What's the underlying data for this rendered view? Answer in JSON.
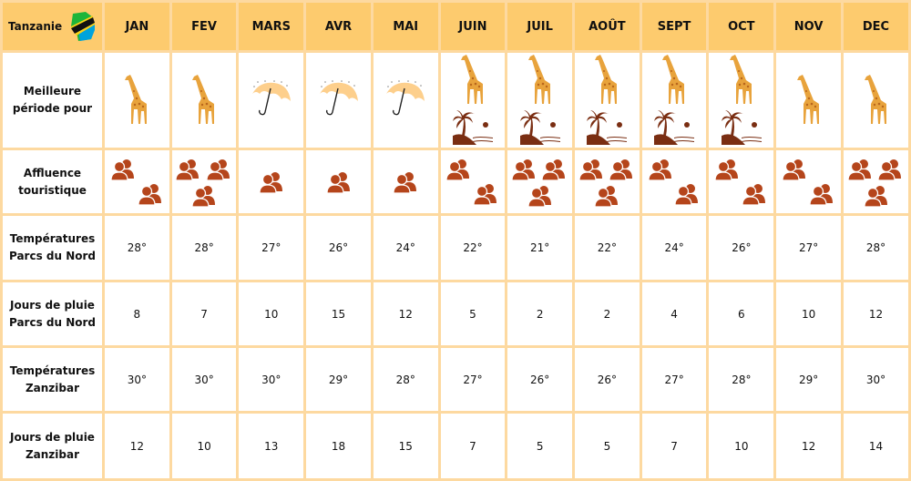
{
  "corner": {
    "label": "Tanzanie",
    "icon": "tanzania-map-flag-icon"
  },
  "months": [
    "JAN",
    "FEV",
    "MARS",
    "AVR",
    "MAI",
    "JUIN",
    "JUIL",
    "AOÛT",
    "SEPT",
    "OCT",
    "NOV",
    "DEC"
  ],
  "rows": {
    "best": {
      "label": "Meilleure\npériode pour",
      "values": [
        [
          "giraffe"
        ],
        [
          "giraffe"
        ],
        [
          "rain-umbrella"
        ],
        [
          "rain-umbrella"
        ],
        [
          "rain-umbrella"
        ],
        [
          "giraffe",
          "beach"
        ],
        [
          "giraffe",
          "beach"
        ],
        [
          "giraffe",
          "beach"
        ],
        [
          "giraffe",
          "beach"
        ],
        [
          "giraffe",
          "beach"
        ],
        [
          "giraffe"
        ],
        [
          "giraffe"
        ]
      ]
    },
    "crowd": {
      "label": "Affluence\ntouristique",
      "values": [
        2,
        3,
        1,
        1,
        1,
        2,
        3,
        3,
        2,
        2,
        2,
        3
      ]
    },
    "temp_north": {
      "label": "Températures\nParcs du Nord",
      "values": [
        "28°",
        "28°",
        "27°",
        "26°",
        "24°",
        "22°",
        "21°",
        "22°",
        "24°",
        "26°",
        "27°",
        "28°"
      ]
    },
    "rain_north": {
      "label": "Jours de pluie\nParcs du Nord",
      "values": [
        "8",
        "7",
        "10",
        "15",
        "12",
        "5",
        "2",
        "2",
        "4",
        "6",
        "10",
        "12"
      ]
    },
    "temp_zanzibar": {
      "label": "Températures\nZanzibar",
      "values": [
        "30°",
        "30°",
        "30°",
        "29°",
        "28°",
        "27°",
        "26°",
        "26°",
        "27°",
        "28°",
        "29°",
        "30°"
      ]
    },
    "rain_zanzibar": {
      "label": "Jours de pluie\nZanzibar",
      "values": [
        "12",
        "10",
        "13",
        "18",
        "15",
        "7",
        "5",
        "5",
        "7",
        "10",
        "12",
        "14"
      ]
    }
  },
  "colors": {
    "header": "#fdcb6e",
    "border": "#fdd9a0",
    "people": "#b5451b",
    "giraffe": "#e8a33c",
    "beach": "#7a2e12"
  }
}
